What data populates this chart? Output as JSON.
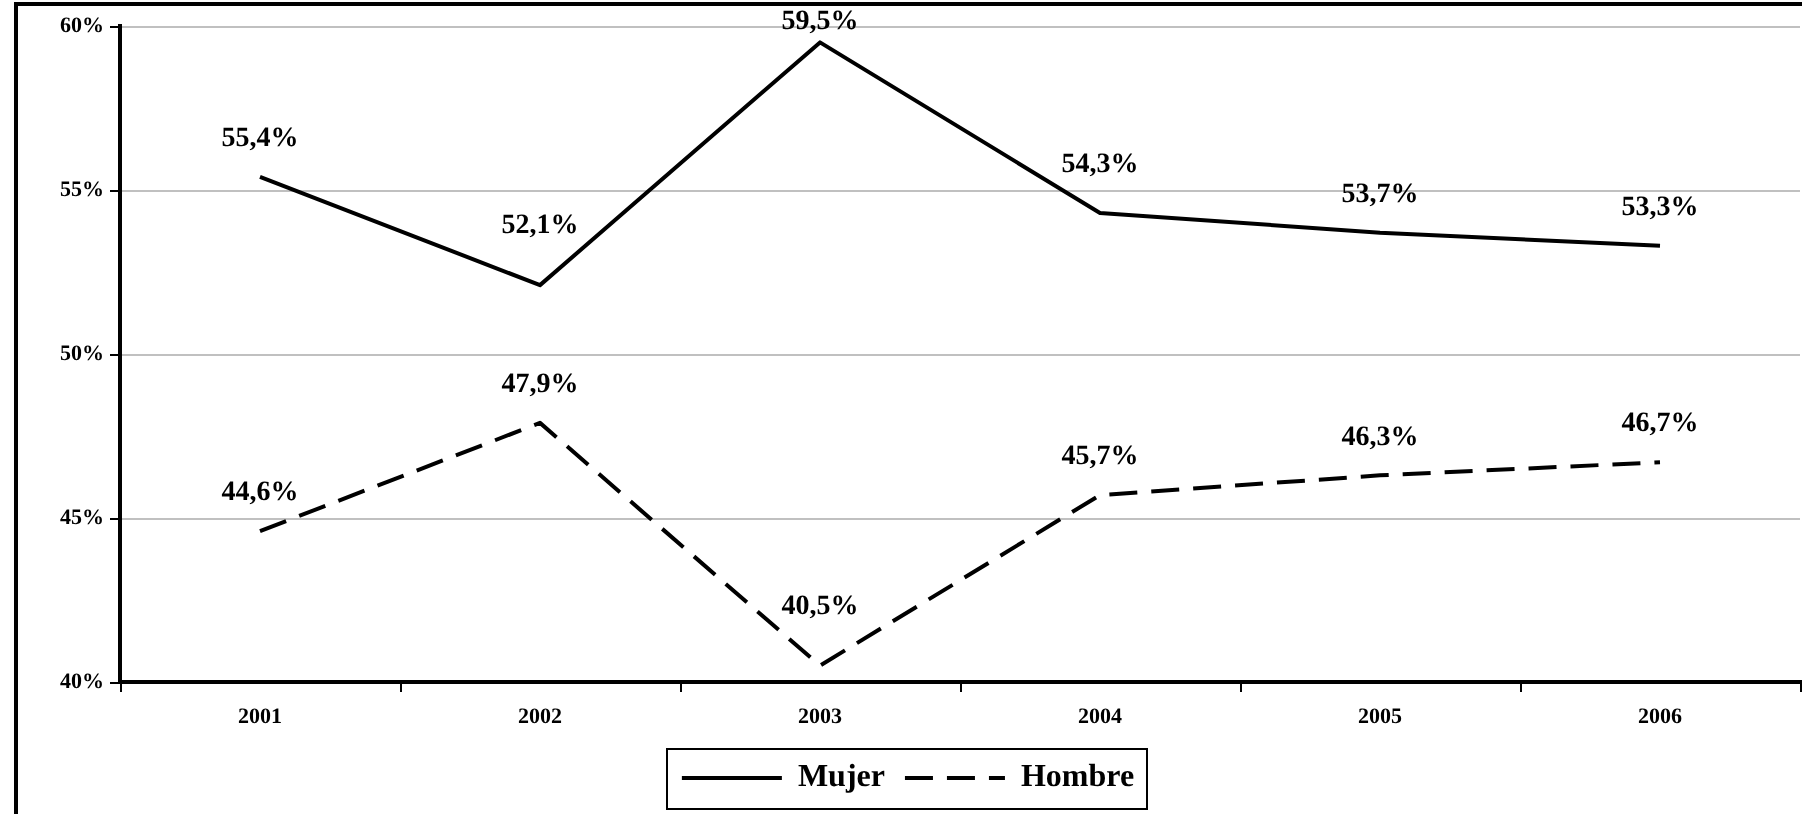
{
  "chart_data": {
    "type": "line",
    "categories": [
      "2001",
      "2002",
      "2003",
      "2004",
      "2005",
      "2006"
    ],
    "series": [
      {
        "name": "Mujer",
        "color": "#000000",
        "line_style": "solid",
        "values": [
          55.4,
          52.1,
          59.5,
          54.3,
          53.7,
          53.3
        ],
        "value_labels": [
          "55,4%",
          "52,1%",
          "59,5%",
          "54,3%",
          "53,7%",
          "53,3%"
        ]
      },
      {
        "name": "Hombre",
        "color": "#000000",
        "line_style": "dashed",
        "values": [
          44.6,
          47.9,
          40.5,
          45.7,
          46.3,
          46.7
        ],
        "value_labels": [
          "44,6%",
          "47,9%",
          "40,5%",
          "45,7%",
          "46,3%",
          "46,7%"
        ]
      }
    ],
    "ylim": [
      40,
      60
    ],
    "yticks": [
      {
        "value": 40,
        "label": "40%"
      },
      {
        "value": 45,
        "label": "45%"
      },
      {
        "value": 50,
        "label": "50%"
      },
      {
        "value": 55,
        "label": "55%"
      },
      {
        "value": 60,
        "label": "60%"
      }
    ],
    "grid": "y",
    "legend": "bottom",
    "marker": "none"
  }
}
